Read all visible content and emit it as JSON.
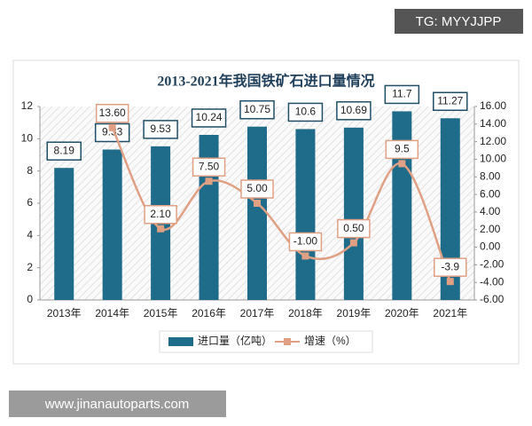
{
  "chart_data": {
    "type": "bar_line",
    "title": "2013-2021年我国铁矿石进口量情况",
    "categories": [
      "2013年",
      "2014年",
      "2015年",
      "2016年",
      "2017年",
      "2018年",
      "2019年",
      "2020年",
      "2021年"
    ],
    "series": [
      {
        "name": "进口量（亿吨）",
        "type": "bar",
        "color": "#1f6b8a",
        "values": [
          8.19,
          9.33,
          9.53,
          10.24,
          10.75,
          10.6,
          10.69,
          11.7,
          11.27
        ]
      },
      {
        "name": "增速（%）",
        "type": "line",
        "axis": "y2",
        "color": "#e0a083",
        "values": [
          null,
          13.6,
          2.1,
          7.5,
          5.0,
          -1.0,
          0.5,
          9.5,
          -3.9
        ],
        "value_labels": [
          null,
          "13.60",
          "2.10",
          "7.50",
          "5.00",
          "-1.00",
          "0.50",
          "9.5",
          "-3.9"
        ]
      }
    ],
    "ylim": [
      0,
      12
    ],
    "yticks": [
      0,
      2,
      4,
      6,
      8,
      10,
      12
    ],
    "y2lim": [
      -6,
      16
    ],
    "y2ticks": [
      {
        "value": -6,
        "label": "-6.00"
      },
      {
        "value": -4,
        "label": "-4.00"
      },
      {
        "value": -2,
        "label": "-2.00"
      },
      {
        "value": 0,
        "label": "0.00"
      },
      {
        "value": 2,
        "label": "2.00"
      },
      {
        "value": 4,
        "label": "4.00"
      },
      {
        "value": 6,
        "label": "6.00"
      },
      {
        "value": 8,
        "label": "8.00"
      },
      {
        "value": 10,
        "label": "10.00"
      },
      {
        "value": 12,
        "label": "12.00"
      },
      {
        "value": 14,
        "label": "14.00"
      },
      {
        "value": 16,
        "label": "16.00"
      }
    ],
    "legend": "bottom"
  },
  "watermarks": {
    "top_right": "TG: MYYJJPP",
    "bottom_left": "www.jinanautoparts.com"
  }
}
